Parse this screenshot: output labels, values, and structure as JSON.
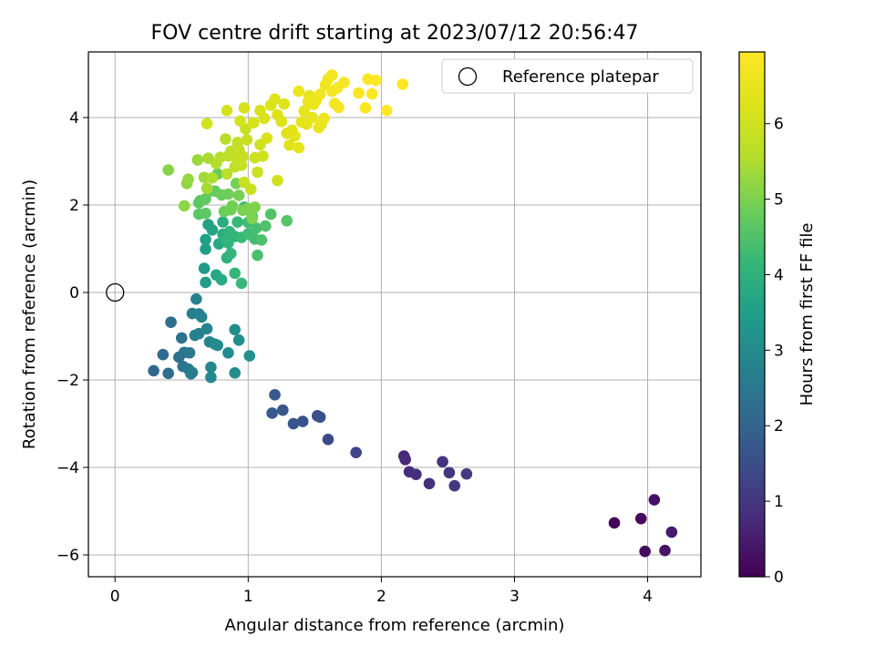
{
  "chart_data": {
    "type": "scatter",
    "title": "FOV centre drift starting at 2023/07/12 20:56:47",
    "xlabel": "Angular distance from reference (arcmin)",
    "ylabel": "Rotation from reference (arcmin)",
    "xlim": [
      -0.2,
      4.4
    ],
    "ylim": [
      -6.5,
      5.5
    ],
    "xticks": [
      0,
      1,
      2,
      3,
      4
    ],
    "yticks": [
      -6,
      -4,
      -2,
      0,
      2,
      4
    ],
    "xtick_labels": [
      "0",
      "1",
      "2",
      "3",
      "4"
    ],
    "ytick_labels": [
      "−6",
      "−4",
      "−2",
      "0",
      "2",
      "4"
    ],
    "grid": true,
    "legend": {
      "placement": "top-right",
      "entries": [
        "Reference platepar"
      ]
    },
    "reference_point": {
      "x": 0,
      "y": 0,
      "marker": "open-circle"
    },
    "colorbar": {
      "label": "Hours from first FF file",
      "colormap": "viridis",
      "range": [
        0,
        6.95
      ],
      "ticks": [
        0,
        1,
        2,
        3,
        4,
        5,
        6
      ],
      "tick_labels": [
        "0",
        "1",
        "2",
        "3",
        "4",
        "5",
        "6"
      ]
    },
    "series": [
      {
        "points": [
          [
            3.75,
            -5.27,
            0.05
          ],
          [
            3.95,
            -5.17,
            0.12
          ],
          [
            3.98,
            -5.92,
            0.2
          ],
          [
            4.05,
            -4.74,
            0.28
          ],
          [
            4.13,
            -5.9,
            0.36
          ],
          [
            4.18,
            -5.48,
            0.44
          ],
          [
            2.17,
            -3.74,
            0.7
          ],
          [
            2.18,
            -3.82,
            0.75
          ],
          [
            2.21,
            -4.1,
            0.8
          ],
          [
            2.26,
            -4.16,
            0.85
          ],
          [
            2.36,
            -4.37,
            0.9
          ],
          [
            2.46,
            -3.87,
            0.95
          ],
          [
            2.51,
            -4.12,
            1.0
          ],
          [
            2.55,
            -4.42,
            1.05
          ],
          [
            2.64,
            -4.15,
            1.1
          ],
          [
            1.81,
            -3.66,
            1.3
          ],
          [
            1.6,
            -3.36,
            1.4
          ],
          [
            1.52,
            -2.82,
            1.5
          ],
          [
            1.54,
            -2.85,
            1.55
          ],
          [
            1.41,
            -2.95,
            1.6
          ],
          [
            1.34,
            -3.0,
            1.65
          ],
          [
            1.26,
            -2.69,
            1.7
          ],
          [
            1.2,
            -2.34,
            1.75
          ],
          [
            1.18,
            -2.76,
            1.8
          ],
          [
            0.29,
            -1.79,
            2.1
          ],
          [
            0.36,
            -1.42,
            2.15
          ],
          [
            0.4,
            -1.85,
            2.2
          ],
          [
            0.42,
            -0.68,
            2.25
          ],
          [
            0.48,
            -1.48,
            2.3
          ],
          [
            0.5,
            -1.04,
            2.35
          ],
          [
            0.51,
            -1.69,
            2.4
          ],
          [
            0.52,
            -1.37,
            2.45
          ],
          [
            0.55,
            -1.75,
            2.5
          ],
          [
            0.56,
            -1.38,
            2.55
          ],
          [
            0.57,
            -1.86,
            2.6
          ],
          [
            0.58,
            -1.83,
            2.62
          ],
          [
            0.58,
            -0.48,
            2.65
          ],
          [
            0.6,
            -0.98,
            2.7
          ],
          [
            0.61,
            -0.15,
            2.72
          ],
          [
            0.63,
            -0.94,
            2.75
          ],
          [
            0.63,
            -0.49,
            2.78
          ],
          [
            0.65,
            -0.56,
            2.8
          ],
          [
            0.69,
            -0.83,
            2.83
          ],
          [
            0.71,
            -1.13,
            2.86
          ],
          [
            0.72,
            -1.71,
            2.89
          ],
          [
            0.72,
            -1.94,
            2.92
          ],
          [
            0.75,
            -1.18,
            2.95
          ],
          [
            0.77,
            -1.21,
            2.97
          ],
          [
            0.85,
            -1.38,
            3.0
          ],
          [
            0.9,
            -0.85,
            3.03
          ],
          [
            0.9,
            -1.84,
            3.06
          ],
          [
            0.93,
            -1.09,
            3.09
          ],
          [
            1.01,
            -1.45,
            3.12
          ],
          [
            0.67,
            0.55,
            3.4
          ],
          [
            0.68,
            0.23,
            3.45
          ],
          [
            0.68,
            0.99,
            3.5
          ],
          [
            0.68,
            1.21,
            3.55
          ],
          [
            0.7,
            1.55,
            3.6
          ],
          [
            0.73,
            1.43,
            3.65
          ],
          [
            0.76,
            0.4,
            3.7
          ],
          [
            0.78,
            1.11,
            3.75
          ],
          [
            0.8,
            0.29,
            3.8
          ],
          [
            0.81,
            1.33,
            3.85
          ],
          [
            0.81,
            1.61,
            3.9
          ],
          [
            0.83,
            1.21,
            3.95
          ],
          [
            0.84,
            0.79,
            4.0
          ],
          [
            0.85,
            1.13,
            4.05
          ],
          [
            0.86,
            1.39,
            4.08
          ],
          [
            0.87,
            0.89,
            4.1
          ],
          [
            0.9,
            1.28,
            4.12
          ],
          [
            0.9,
            0.44,
            4.15
          ],
          [
            0.92,
            1.61,
            4.18
          ],
          [
            0.95,
            0.21,
            4.2
          ],
          [
            0.95,
            1.26,
            4.22
          ],
          [
            0.97,
            1.95,
            4.25
          ],
          [
            1.0,
            1.34,
            4.28
          ],
          [
            1.0,
            1.6,
            4.3
          ],
          [
            1.03,
            1.74,
            4.33
          ],
          [
            1.05,
            1.22,
            4.36
          ],
          [
            1.06,
            1.47,
            4.39
          ],
          [
            1.07,
            0.85,
            4.42
          ],
          [
            1.1,
            1.2,
            4.45
          ],
          [
            1.13,
            1.52,
            4.48
          ],
          [
            1.17,
            1.79,
            4.52
          ],
          [
            1.29,
            1.64,
            4.55
          ],
          [
            0.63,
            1.79,
            4.6
          ],
          [
            0.63,
            2.05,
            4.62
          ],
          [
            0.64,
            2.1,
            4.65
          ],
          [
            0.68,
            1.81,
            4.68
          ],
          [
            0.68,
            2.14,
            4.7
          ],
          [
            0.71,
            2.32,
            4.72
          ],
          [
            0.75,
            2.32,
            4.75
          ],
          [
            0.77,
            2.71,
            4.78
          ],
          [
            0.8,
            2.23,
            4.8
          ],
          [
            0.82,
            1.85,
            4.82
          ],
          [
            0.85,
            2.25,
            4.85
          ],
          [
            0.87,
            1.89,
            4.88
          ],
          [
            0.88,
            1.98,
            4.9
          ],
          [
            0.91,
            2.49,
            4.92
          ],
          [
            0.93,
            2.22,
            4.95
          ],
          [
            0.96,
            1.88,
            4.97
          ],
          [
            1.0,
            1.92,
            5.0
          ],
          [
            1.03,
            1.69,
            5.02
          ],
          [
            1.05,
            1.95,
            5.04
          ],
          [
            0.4,
            2.8,
            5.1
          ],
          [
            0.52,
            1.98,
            5.15
          ],
          [
            0.54,
            2.49,
            5.2
          ],
          [
            0.55,
            2.59,
            5.25
          ],
          [
            0.62,
            3.03,
            5.3
          ],
          [
            0.67,
            2.63,
            5.35
          ],
          [
            0.69,
            2.38,
            5.4
          ],
          [
            0.7,
            3.07,
            5.45
          ],
          [
            0.73,
            2.62,
            5.5
          ],
          [
            0.76,
            2.95,
            5.55
          ],
          [
            0.79,
            3.09,
            5.6
          ],
          [
            0.83,
            3.51,
            5.62
          ],
          [
            0.84,
            2.71,
            5.65
          ],
          [
            0.85,
            3.12,
            5.68
          ],
          [
            0.87,
            3.23,
            5.7
          ],
          [
            0.9,
            2.87,
            5.72
          ],
          [
            0.91,
            3.08,
            5.75
          ],
          [
            0.92,
            3.43,
            5.78
          ],
          [
            0.93,
            3.27,
            5.8
          ],
          [
            0.95,
            2.91,
            5.82
          ],
          [
            0.96,
            3.11,
            5.84
          ],
          [
            0.97,
            2.52,
            5.86
          ],
          [
            0.98,
            3.74,
            5.88
          ],
          [
            0.99,
            3.49,
            5.9
          ],
          [
            1.02,
            2.36,
            5.92
          ],
          [
            1.05,
            3.08,
            5.94
          ],
          [
            1.07,
            2.75,
            5.96
          ],
          [
            1.09,
            3.38,
            5.98
          ],
          [
            1.11,
            3.12,
            6.0
          ],
          [
            1.22,
            2.56,
            6.02
          ],
          [
            0.69,
            3.86,
            6.05
          ],
          [
            0.84,
            4.16,
            6.08
          ],
          [
            0.94,
            3.92,
            6.1
          ],
          [
            0.97,
            4.22,
            6.12
          ],
          [
            1.04,
            3.88,
            6.14
          ],
          [
            1.09,
            4.16,
            6.16
          ],
          [
            1.12,
            3.98,
            6.18
          ],
          [
            1.14,
            3.53,
            6.2
          ],
          [
            1.17,
            4.28,
            6.22
          ],
          [
            1.2,
            4.42,
            6.24
          ],
          [
            1.22,
            4.06,
            6.26
          ],
          [
            1.25,
            3.91,
            6.28
          ],
          [
            1.27,
            4.31,
            6.3
          ],
          [
            1.29,
            3.64,
            6.32
          ],
          [
            1.31,
            3.37,
            6.34
          ],
          [
            1.33,
            3.71,
            6.36
          ],
          [
            1.35,
            3.58,
            6.38
          ],
          [
            1.38,
            3.31,
            6.4
          ],
          [
            1.4,
            3.9,
            6.42
          ],
          [
            1.42,
            4.15,
            6.44
          ],
          [
            1.44,
            3.85,
            6.46
          ],
          [
            1.46,
            4.5,
            6.48
          ],
          [
            1.48,
            4.0,
            6.5
          ],
          [
            1.51,
            4.39,
            6.52
          ],
          [
            1.53,
            3.77,
            6.54
          ],
          [
            1.55,
            3.85,
            6.56
          ],
          [
            1.57,
            3.98,
            6.58
          ],
          [
            1.38,
            4.6,
            6.6
          ],
          [
            1.45,
            4.37,
            6.62
          ],
          [
            1.49,
            4.3,
            6.64
          ],
          [
            1.54,
            4.53,
            6.66
          ],
          [
            1.58,
            4.74,
            6.68
          ],
          [
            1.6,
            4.88,
            6.7
          ],
          [
            1.63,
            4.97,
            6.72
          ],
          [
            1.63,
            4.6,
            6.74
          ],
          [
            1.65,
            4.32,
            6.76
          ],
          [
            1.67,
            4.68,
            6.78
          ],
          [
            1.68,
            4.23,
            6.8
          ],
          [
            1.72,
            4.8,
            6.82
          ],
          [
            1.83,
            4.56,
            6.84
          ],
          [
            1.88,
            4.22,
            6.86
          ],
          [
            1.9,
            4.88,
            6.88
          ],
          [
            1.93,
            4.54,
            6.9
          ],
          [
            1.96,
            4.85,
            6.92
          ],
          [
            2.04,
            4.16,
            6.93
          ],
          [
            2.16,
            4.76,
            6.95
          ]
        ]
      }
    ]
  }
}
